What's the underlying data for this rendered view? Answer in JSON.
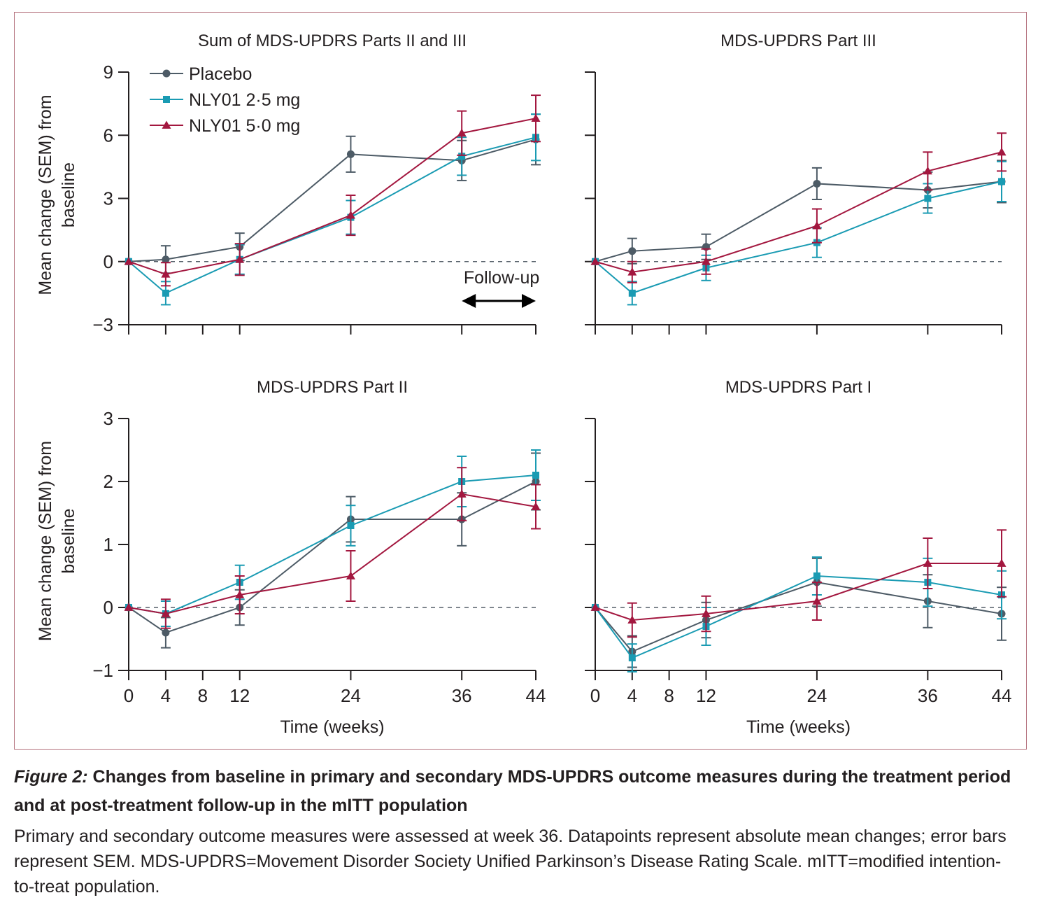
{
  "figure": {
    "label": "Figure 2:",
    "title": "Changes from baseline in primary and secondary MDS-UPDRS outcome measures during the treatment period and at post-treatment follow-up in the mITT population",
    "description": "Primary and secondary outcome measures were assessed at week 36. Datapoints represent absolute mean changes; error bars represent SEM. MDS-UPDRS=Movement Disorder Society Unified Parkinson’s Disease Rating Scale. mITT=modified intention-to-treat population."
  },
  "legend": [
    {
      "name": "Placebo",
      "color": "#4d5b66",
      "marker": "circle"
    },
    {
      "name": "NLY01 2·5 mg",
      "color": "#1a9bb3",
      "marker": "square"
    },
    {
      "name": "NLY01 5·0 mg",
      "color": "#a3173f",
      "marker": "triangle"
    }
  ],
  "followup_label": "Follow-up",
  "chart_data": [
    {
      "type": "line",
      "title": "Sum of MDS-UPDRS Parts II and III",
      "ylabel": "Mean change (SEM) from baseline",
      "xlabel": "",
      "ylim": [
        -3,
        9
      ],
      "yticks": [
        -3,
        0,
        3,
        6,
        9
      ],
      "ytick_labels": [
        "−3",
        "0",
        "3",
        "6",
        "9"
      ],
      "xlim": [
        0,
        44
      ],
      "xticks": [
        0,
        4,
        8,
        12,
        24,
        36,
        44
      ],
      "xtick_labels": [],
      "x": [
        0,
        4,
        12,
        24,
        36,
        44
      ],
      "series": [
        {
          "name": "Placebo",
          "values": [
            0,
            0.1,
            0.7,
            5.1,
            4.8,
            5.8
          ],
          "sem": [
            0,
            0.65,
            0.65,
            0.85,
            0.95,
            1.2
          ]
        },
        {
          "name": "NLY01 2·5 mg",
          "values": [
            0,
            -1.5,
            0.1,
            2.1,
            5.0,
            5.9
          ],
          "sem": [
            0,
            0.55,
            0.7,
            0.8,
            0.9,
            1.1
          ]
        },
        {
          "name": "NLY01 5·0 mg",
          "values": [
            0,
            -0.6,
            0.1,
            2.2,
            6.1,
            6.8
          ],
          "sem": [
            0,
            0.55,
            0.75,
            0.95,
            1.05,
            1.1
          ]
        }
      ]
    },
    {
      "type": "line",
      "title": "MDS-UPDRS Part III",
      "ylabel": "",
      "xlabel": "",
      "ylim": [
        -3,
        9
      ],
      "yticks": [
        -3,
        0,
        3,
        6,
        9
      ],
      "ytick_labels": [],
      "xlim": [
        0,
        44
      ],
      "xticks": [
        0,
        4,
        8,
        12,
        24,
        36,
        44
      ],
      "xtick_labels": [],
      "x": [
        0,
        4,
        12,
        24,
        36,
        44
      ],
      "series": [
        {
          "name": "Placebo",
          "values": [
            0,
            0.5,
            0.7,
            3.7,
            3.4,
            3.8
          ],
          "sem": [
            0,
            0.6,
            0.6,
            0.75,
            0.85,
            1.0
          ]
        },
        {
          "name": "NLY01 2·5 mg",
          "values": [
            0,
            -1.5,
            -0.3,
            0.9,
            3.0,
            3.8
          ],
          "sem": [
            0,
            0.55,
            0.6,
            0.7,
            0.7,
            0.95
          ]
        },
        {
          "name": "NLY01 5·0 mg",
          "values": [
            0,
            -0.5,
            0.0,
            1.7,
            4.3,
            5.2
          ],
          "sem": [
            0,
            0.5,
            0.6,
            0.8,
            0.9,
            0.9
          ]
        }
      ]
    },
    {
      "type": "line",
      "title": "MDS-UPDRS Part II",
      "ylabel": "Mean change (SEM) from baseline",
      "xlabel": "Time (weeks)",
      "ylim": [
        -1,
        3
      ],
      "yticks": [
        -1,
        0,
        1,
        2,
        3
      ],
      "ytick_labels": [
        "−1",
        "0",
        "1",
        "2",
        "3"
      ],
      "xlim": [
        0,
        44
      ],
      "xticks": [
        0,
        4,
        8,
        12,
        24,
        36,
        44
      ],
      "xtick_labels": [
        "0",
        "4",
        "8",
        "12",
        "24",
        "36",
        "44"
      ],
      "x": [
        0,
        4,
        12,
        24,
        36,
        44
      ],
      "series": [
        {
          "name": "Placebo",
          "values": [
            0,
            -0.4,
            0.0,
            1.4,
            1.4,
            2.0
          ],
          "sem": [
            0,
            0.24,
            0.28,
            0.36,
            0.42,
            0.45
          ]
        },
        {
          "name": "NLY01 2·5 mg",
          "values": [
            0,
            -0.1,
            0.4,
            1.3,
            2.0,
            2.1
          ],
          "sem": [
            0,
            0.2,
            0.27,
            0.32,
            0.4,
            0.4
          ]
        },
        {
          "name": "NLY01 5·0 mg",
          "values": [
            0,
            -0.1,
            0.2,
            0.5,
            1.8,
            1.6
          ],
          "sem": [
            0,
            0.23,
            0.3,
            0.4,
            0.42,
            0.35
          ]
        }
      ]
    },
    {
      "type": "line",
      "title": "MDS-UPDRS Part I",
      "ylabel": "",
      "xlabel": "Time (weeks)",
      "ylim": [
        -1,
        3
      ],
      "yticks": [
        -1,
        0,
        1,
        2,
        3
      ],
      "ytick_labels": [],
      "xlim": [
        0,
        44
      ],
      "xticks": [
        0,
        4,
        8,
        12,
        24,
        36,
        44
      ],
      "xtick_labels": [
        "0",
        "4",
        "8",
        "12",
        "24",
        "36",
        "44"
      ],
      "x": [
        0,
        4,
        12,
        24,
        36,
        44
      ],
      "series": [
        {
          "name": "Placebo",
          "values": [
            0,
            -0.7,
            -0.2,
            0.4,
            0.1,
            -0.1
          ],
          "sem": [
            0,
            0.25,
            0.28,
            0.38,
            0.42,
            0.42
          ]
        },
        {
          "name": "NLY01 2·5 mg",
          "values": [
            0,
            -0.8,
            -0.3,
            0.5,
            0.4,
            0.2
          ],
          "sem": [
            0,
            0.22,
            0.3,
            0.3,
            0.38,
            0.38
          ]
        },
        {
          "name": "NLY01 5·0 mg",
          "values": [
            0,
            -0.2,
            -0.1,
            0.1,
            0.7,
            0.7
          ],
          "sem": [
            0,
            0.27,
            0.28,
            0.3,
            0.4,
            0.53
          ]
        }
      ]
    }
  ]
}
